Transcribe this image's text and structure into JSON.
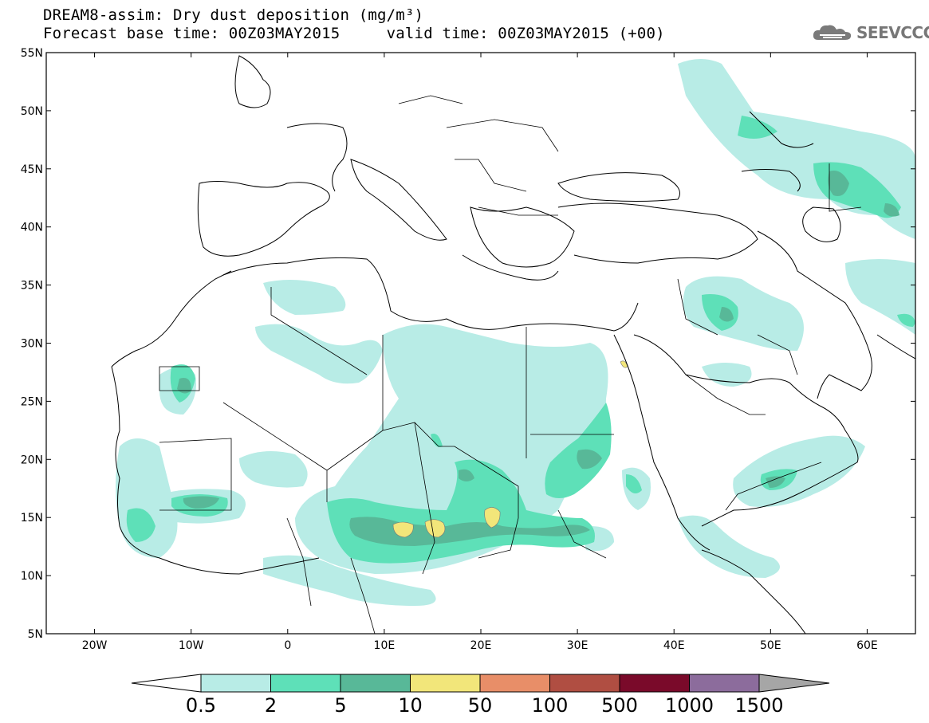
{
  "title_line1": "DREAM8-assim: Dry dust deposition (mg/m³)",
  "title_line2": "Forecast base time: 00Z03MAY2015     valid time: 00Z03MAY2015 (+00)",
  "logo": {
    "text": "SEEVCCC",
    "icon": "cloud-icon"
  },
  "map": {
    "lat_labels": [
      "55N",
      "50N",
      "45N",
      "40N",
      "35N",
      "30N",
      "25N",
      "20N",
      "15N",
      "10N",
      "5N"
    ],
    "lon_labels": [
      "20W",
      "10W",
      "0",
      "10E",
      "20E",
      "30E",
      "40E",
      "50E",
      "60E"
    ],
    "lat_range": [
      5,
      55
    ],
    "lon_range": [
      -25,
      65
    ]
  },
  "colorbar": {
    "colors": [
      "#b8ece6",
      "#5ee0b8",
      "#58b898",
      "#f2e67a",
      "#e88e68",
      "#b04e42",
      "#7a0a2a",
      "#8c6c9c",
      "#a6a6a6"
    ],
    "labels": [
      "0.5",
      "2",
      "5",
      "10",
      "50",
      "100",
      "500",
      "1000",
      "1500"
    ]
  }
}
